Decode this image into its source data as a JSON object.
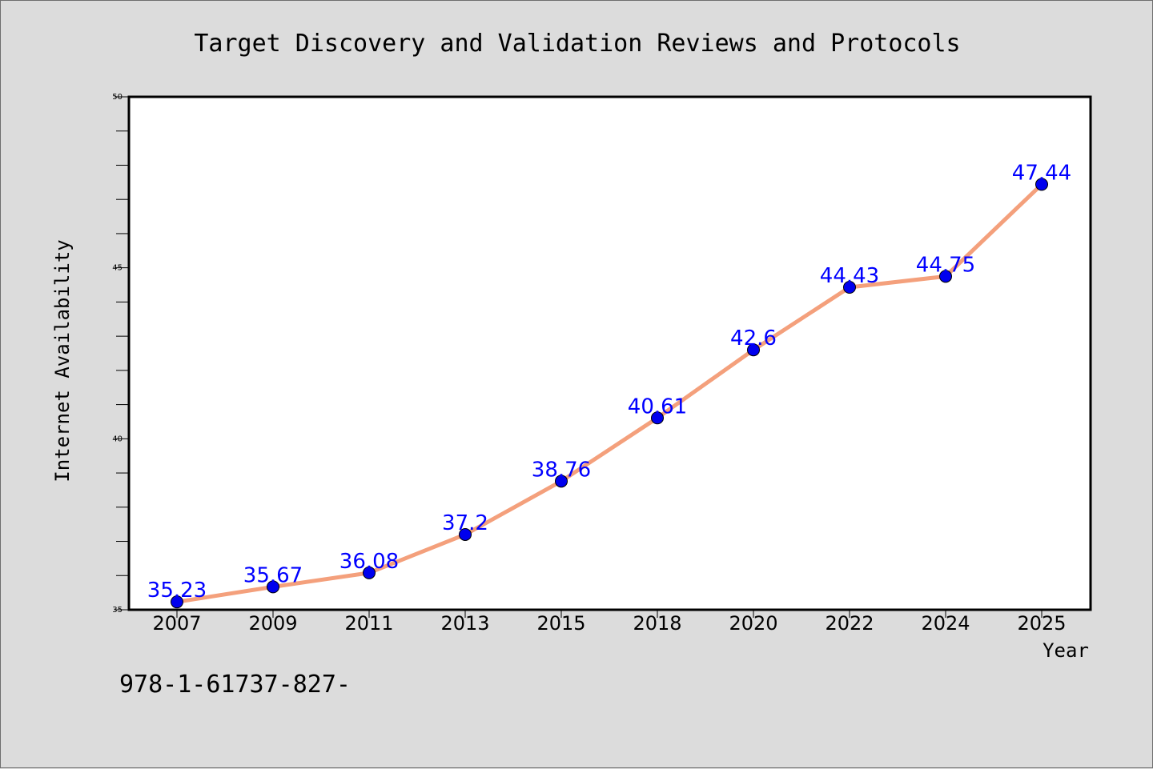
{
  "footer_text": "978-1-61737-827-",
  "colors": {
    "background": "#dcdcdc",
    "plot_area": "#ffffff",
    "line": "#f4a07c",
    "marker": "#0000ee",
    "data_label": "#0000ff"
  },
  "chart_data": {
    "type": "line",
    "title": "Target Discovery and Validation Reviews and Protocols",
    "xlabel": "Year",
    "ylabel": "Internet Availability",
    "categories": [
      "2007",
      "2009",
      "2011",
      "2013",
      "2015",
      "2018",
      "2020",
      "2022",
      "2024",
      "2025"
    ],
    "series": [
      {
        "values": [
          35.23,
          35.67,
          36.08,
          37.2,
          38.76,
          40.61,
          42.6,
          44.43,
          44.75,
          47.44
        ],
        "labels": [
          "35.23",
          "35.67",
          "36.08",
          "37.2",
          "38.76",
          "40.61",
          "42.6",
          "44.43",
          "44.75",
          "47.44"
        ]
      }
    ],
    "ylim": [
      35,
      50
    ],
    "yticks": [
      "35",
      "40",
      "45",
      "50"
    ],
    "grid": false,
    "legend": "none"
  }
}
